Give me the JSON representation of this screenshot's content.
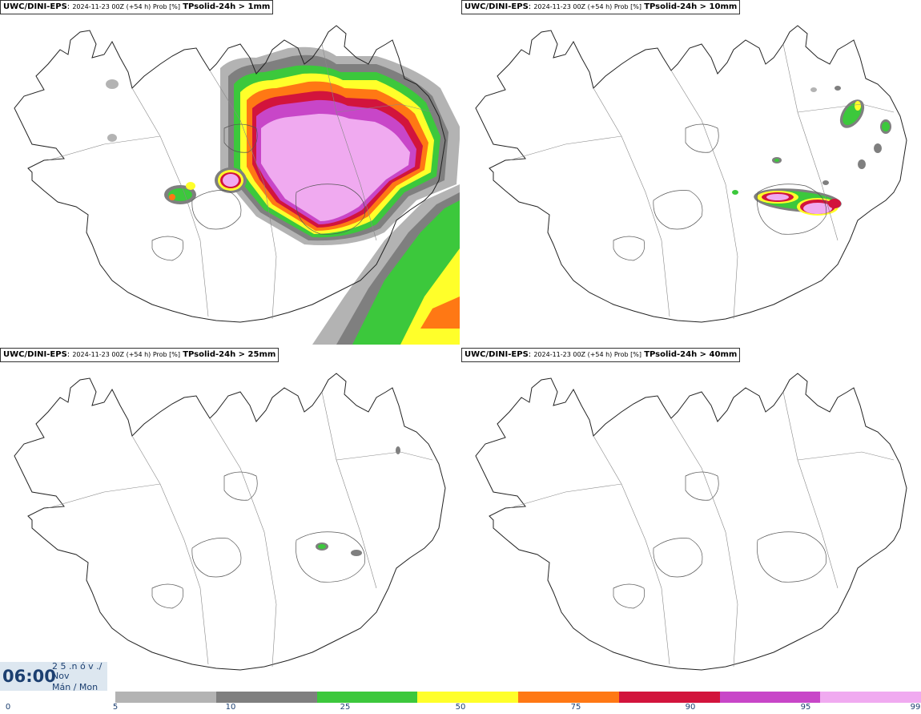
{
  "panels": [
    {
      "model": "UWC/DINI-EPS",
      "info": "2024-11-23 00Z (+54 h) Prob [%]",
      "param": "TPsolid-24h > 1mm"
    },
    {
      "model": "UWC/DINI-EPS",
      "info": "2024-11-23 00Z (+54 h) Prob [%]",
      "param": "TPsolid-24h > 10mm"
    },
    {
      "model": "UWC/DINI-EPS",
      "info": "2024-11-23 00Z (+54 h) Prob [%]",
      "param": "TPsolid-24h > 25mm"
    },
    {
      "model": "UWC/DINI-EPS",
      "info": "2024-11-23 00Z (+54 h) Prob [%]",
      "param": "TPsolid-24h > 40mm"
    }
  ],
  "valid": {
    "time": "06:00",
    "line1": "2 5 .n ó v ./",
    "line2": "Nov",
    "line3": "Mán / Mon"
  },
  "colorbar": {
    "ticks": [
      "0",
      "5",
      "10",
      "25",
      "50",
      "75",
      "90",
      "95",
      "99"
    ],
    "colors": [
      "#b3b3b3",
      "#7f7f7f",
      "#3cc83c",
      "#ffff2a",
      "#ff7814",
      "#d2143c",
      "#c846c8",
      "#f0aaf0"
    ]
  },
  "colors": {
    "coast": "#222222",
    "border": "#555555",
    "title_blue": "#1c3f70"
  }
}
